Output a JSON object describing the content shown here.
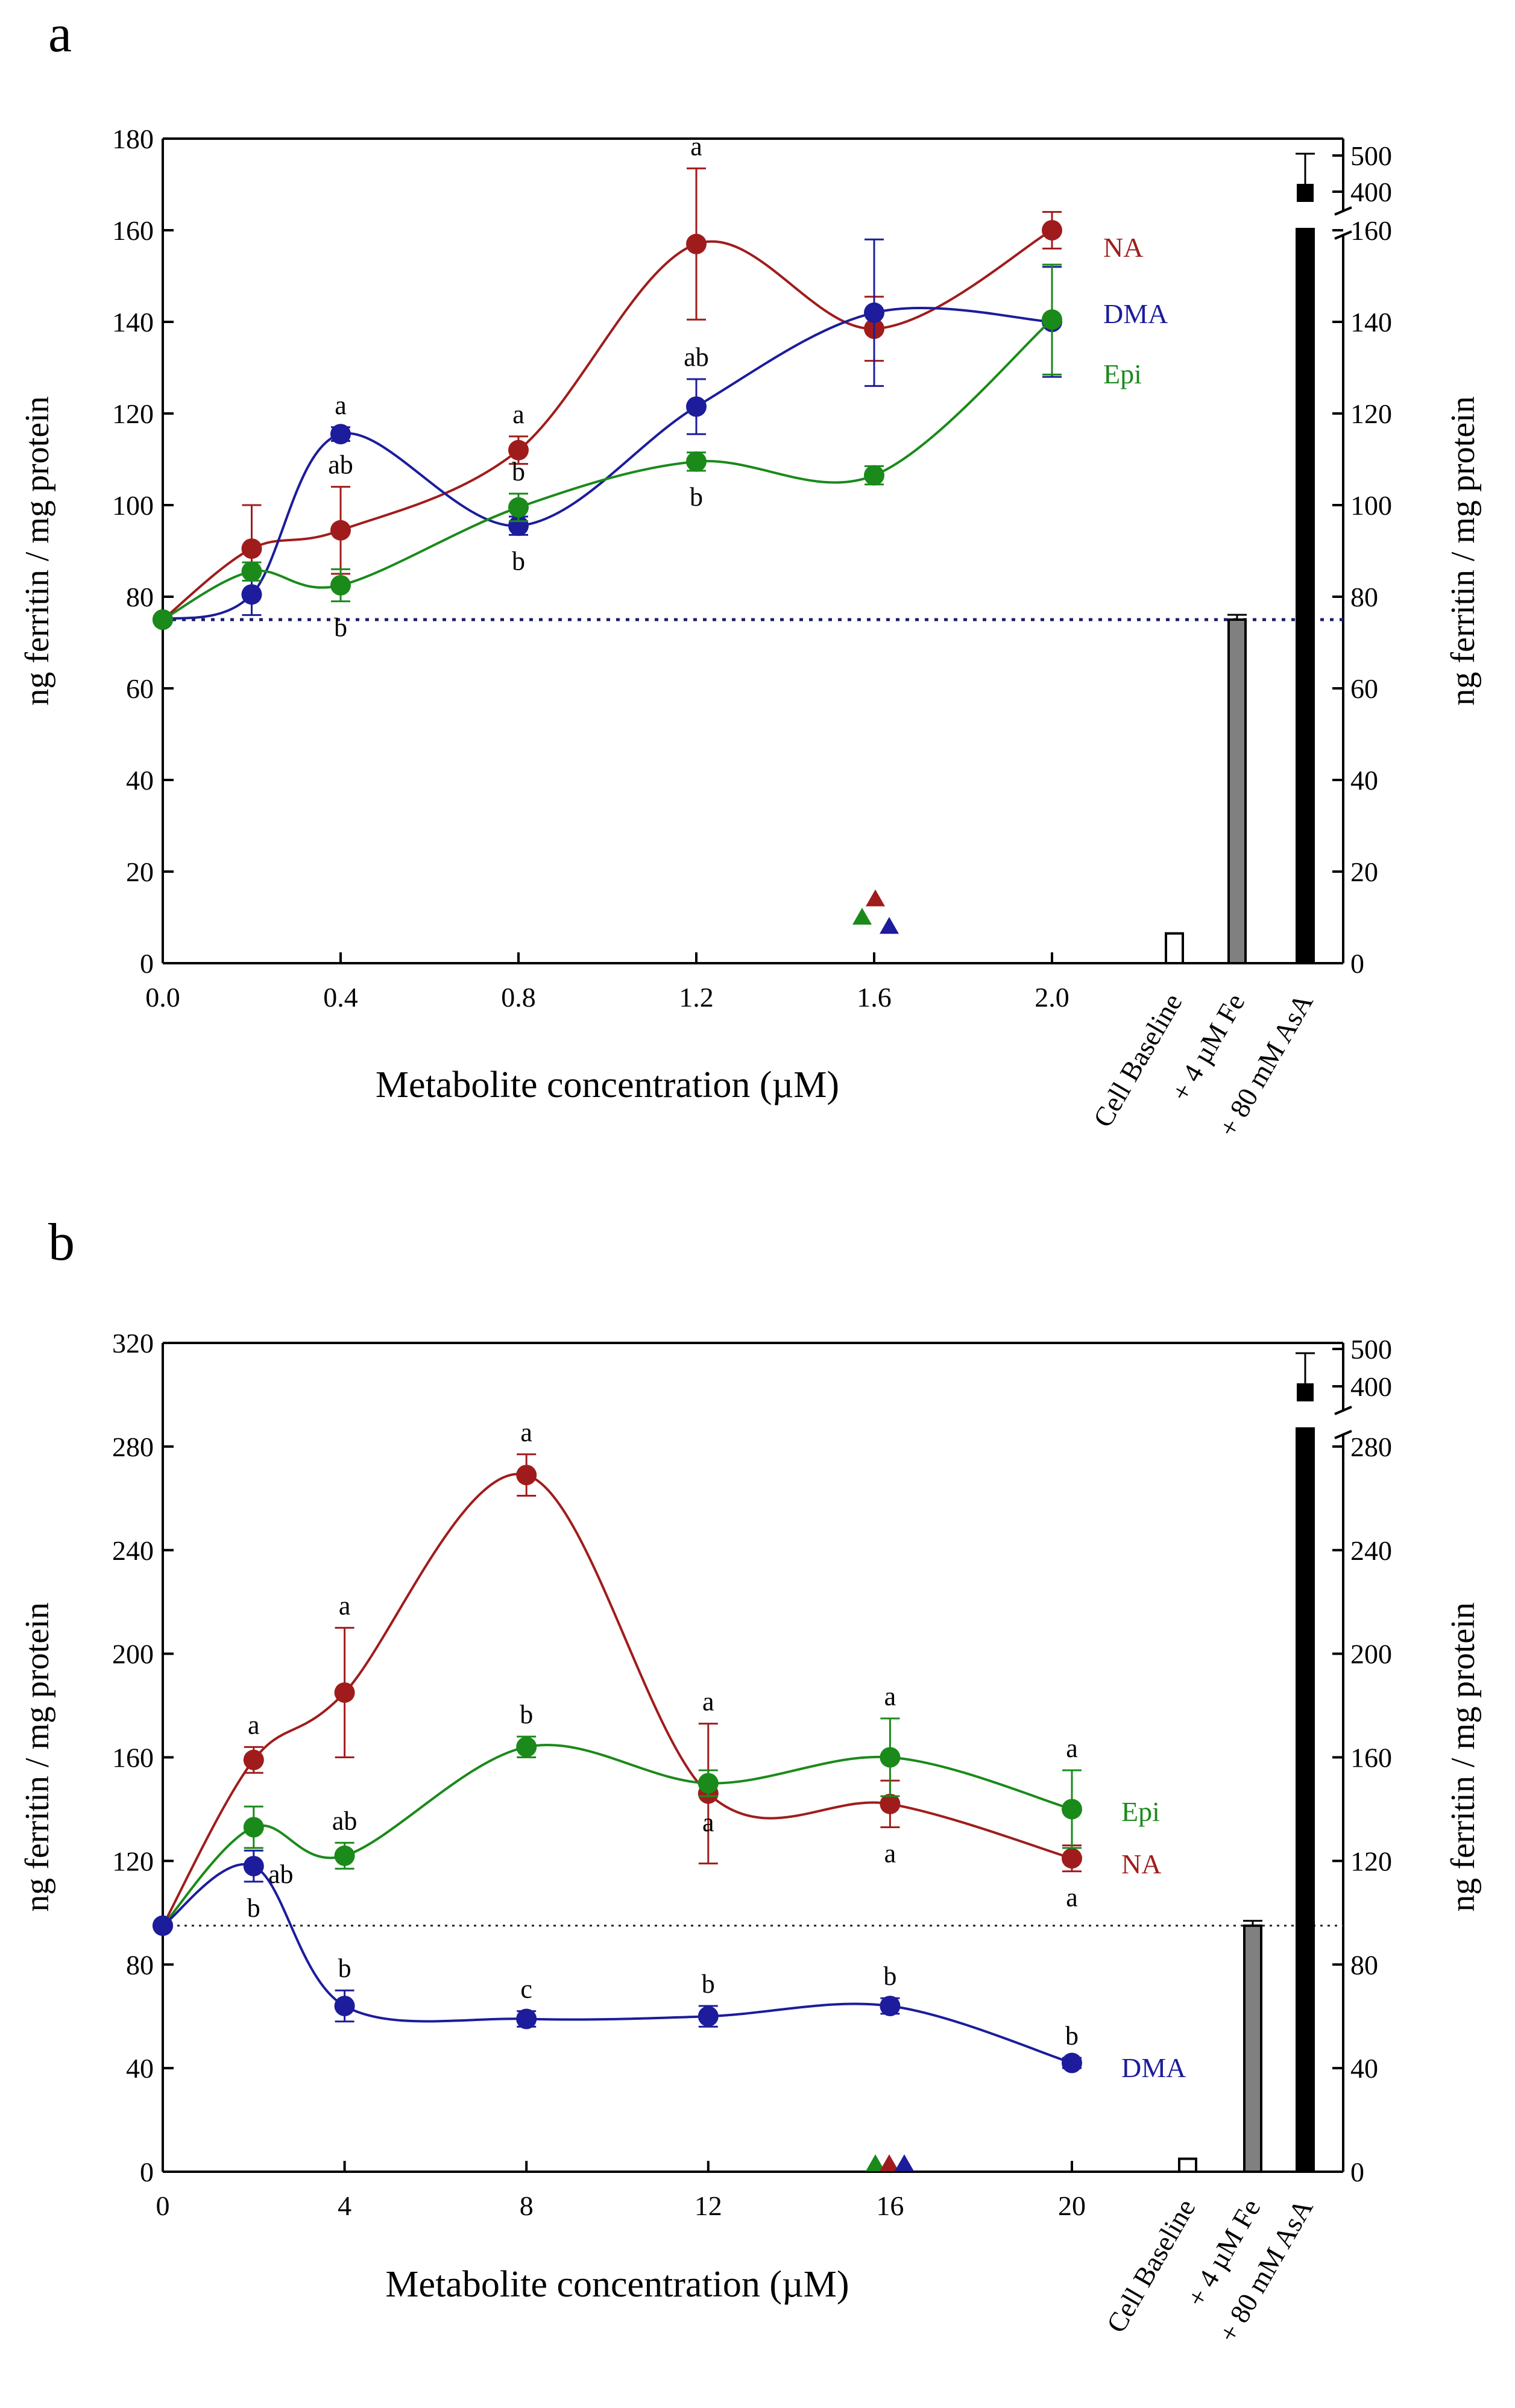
{
  "figure": {
    "y_label": "ng ferritin / mg protein",
    "y_label_right": "ng ferritin / mg protein",
    "x_label": "Metabolite concentration (µM)",
    "control_labels": [
      "Cell Baseline",
      "+ 4 µM Fe",
      "+ 80 mM AsA"
    ],
    "colors": {
      "NA": "#a01c1c",
      "DMA": "#1c1c9c",
      "Epi": "#1a8a1a",
      "axis": "#000000",
      "bar_fe": "#808080"
    }
  },
  "chart_data": [
    {
      "panel": "a",
      "type": "line",
      "title": "a",
      "xlabel": "Metabolite concentration (µM)",
      "ylabel": "ng ferritin / mg protein",
      "xlim": [
        0,
        2.0
      ],
      "x_ticks": [
        "0.0",
        "0.4",
        "0.8",
        "1.2",
        "1.6",
        "2.0"
      ],
      "ylim": [
        0,
        180
      ],
      "y_ticks": [
        "0",
        "20",
        "40",
        "60",
        "80",
        "100",
        "120",
        "140",
        "160",
        "180"
      ],
      "right_y_ticks": [
        "0",
        "20",
        "40",
        "60",
        "80",
        "100",
        "120",
        "140",
        "160"
      ],
      "right_y_break_ticks": [
        "400",
        "500"
      ],
      "baseline_ref": 75,
      "x": [
        0,
        0.2,
        0.4,
        0.8,
        1.2,
        1.6,
        2.0
      ],
      "series": [
        {
          "name": "NA",
          "color": "#a01c1c",
          "values": [
            75,
            90.5,
            94.5,
            112,
            157,
            138.5,
            160
          ],
          "errors": [
            0,
            9.5,
            9.5,
            3,
            16.5,
            7,
            4
          ],
          "letters": [
            "",
            "",
            "ab",
            "a",
            "a",
            "",
            ""
          ]
        },
        {
          "name": "DMA",
          "color": "#1c1c9c",
          "values": [
            75,
            80.5,
            115.5,
            95.5,
            121.5,
            142,
            140
          ],
          "errors": [
            0,
            4.5,
            1.5,
            2,
            6,
            16,
            12
          ],
          "letters": [
            "",
            "",
            "a",
            "b",
            "ab",
            "",
            ""
          ]
        },
        {
          "name": "Epi",
          "color": "#1a8a1a",
          "values": [
            75,
            85.5,
            82.5,
            99.5,
            109.5,
            106.5,
            140.5
          ],
          "errors": [
            0,
            2,
            3.5,
            3,
            2,
            2,
            12
          ],
          "letters": [
            "",
            "",
            "b",
            "b",
            "b",
            "",
            ""
          ]
        }
      ],
      "triangles": [
        {
          "name": "NA",
          "value": 14
        },
        {
          "name": "Epi",
          "value": 10
        },
        {
          "name": "DMA",
          "value": 8
        }
      ],
      "controls": {
        "Cell Baseline": 6.5,
        "+ 4 µM Fe": 75,
        "+ 80 mM AsA": 430
      }
    },
    {
      "panel": "b",
      "type": "line",
      "title": "b",
      "xlabel": "Metabolite concentration (µM)",
      "ylabel": "ng ferritin / mg protein",
      "xlim": [
        0,
        20
      ],
      "x_ticks": [
        "0",
        "4",
        "8",
        "12",
        "16",
        "20"
      ],
      "ylim": [
        0,
        320
      ],
      "y_ticks": [
        "0",
        "40",
        "80",
        "120",
        "160",
        "200",
        "240",
        "280",
        "320"
      ],
      "right_y_ticks": [
        "0",
        "40",
        "80",
        "120",
        "160",
        "200",
        "240",
        "280"
      ],
      "right_y_break_ticks": [
        "400",
        "500"
      ],
      "baseline_ref": 95,
      "x": [
        0,
        2,
        4,
        8,
        12,
        16,
        20
      ],
      "series": [
        {
          "name": "NA",
          "color": "#a01c1c",
          "values": [
            95,
            159,
            185,
            269,
            146,
            142,
            121
          ],
          "errors": [
            0,
            5,
            25,
            8,
            27,
            9,
            5
          ],
          "letters": [
            "",
            "a",
            "a",
            "a",
            "a",
            "a",
            "a"
          ]
        },
        {
          "name": "Epi",
          "color": "#1a8a1a",
          "values": [
            95,
            133,
            122,
            164,
            150,
            160,
            140
          ],
          "errors": [
            0,
            8,
            5,
            4,
            5,
            15,
            15
          ],
          "letters": [
            "",
            "ab",
            "ab",
            "b",
            "a",
            "a",
            "a"
          ]
        },
        {
          "name": "DMA",
          "color": "#1c1c9c",
          "values": [
            95,
            118,
            64,
            59,
            60,
            64,
            42
          ],
          "errors": [
            0,
            6,
            6,
            3,
            4,
            3,
            2
          ],
          "letters": [
            "",
            "b",
            "b",
            "c",
            "b",
            "b",
            "b"
          ]
        }
      ],
      "triangles": [
        {
          "name": "Epi",
          "value": 3
        },
        {
          "name": "NA",
          "value": 3
        },
        {
          "name": "DMA",
          "value": 3
        }
      ],
      "controls": {
        "Cell Baseline": 5,
        "+ 4 µM Fe": 95,
        "+ 80 mM AsA": 430
      }
    }
  ]
}
